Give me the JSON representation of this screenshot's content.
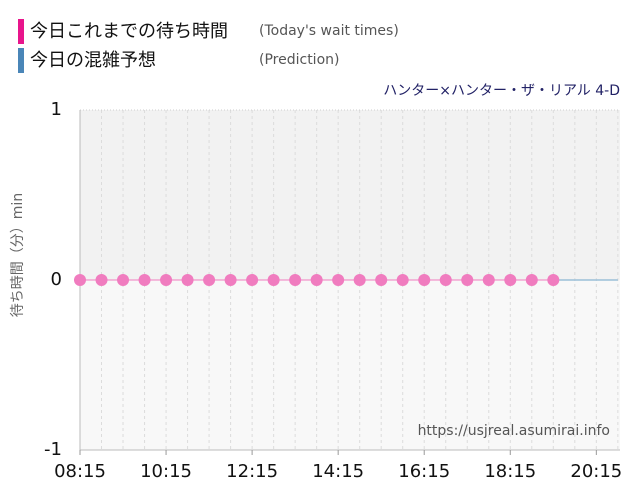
{
  "chart_data": {
    "type": "line",
    "legend": [
      {
        "label": "今日これまでの待ち時間",
        "note": "(Today's wait times)",
        "color": "#e8158c"
      },
      {
        "label": "今日の混雑予想",
        "note": "(Prediction)",
        "color": "#4a86b8"
      }
    ],
    "subtitle": "ハンター×ハンター・ザ・リアル 4-D",
    "y_label": "待ち時間（分）min",
    "watermark": "https://usjreal.asumirai.info",
    "x": [
      "08:15",
      "08:45",
      "09:15",
      "09:45",
      "10:15",
      "10:45",
      "11:15",
      "11:45",
      "12:15",
      "12:45",
      "13:15",
      "13:45",
      "14:15",
      "14:45",
      "15:15",
      "15:45",
      "16:15",
      "16:45",
      "17:15",
      "17:45",
      "18:15",
      "18:45",
      "19:15",
      "19:45",
      "20:15",
      "20:45"
    ],
    "series": [
      {
        "name": "今日これまでの待ち時間",
        "color": "#f07cbf",
        "values": [
          0,
          0,
          0,
          0,
          0,
          0,
          0,
          0,
          0,
          0,
          0,
          0,
          0,
          0,
          0,
          0,
          0,
          0,
          0,
          0,
          0,
          0,
          0,
          null,
          null,
          null
        ]
      },
      {
        "name": "今日の混雑予想",
        "color": "#9bbfd8",
        "values": [
          null,
          null,
          null,
          null,
          null,
          null,
          null,
          null,
          null,
          null,
          null,
          null,
          null,
          null,
          null,
          null,
          null,
          null,
          null,
          null,
          null,
          null,
          0,
          0,
          0,
          0
        ]
      }
    ],
    "xlim": [
      "08:15",
      "20:48"
    ],
    "xticks": [
      "08:15",
      "10:15",
      "12:15",
      "14:15",
      "16:15",
      "18:15",
      "20:15"
    ],
    "ylim": [
      -1,
      1
    ],
    "yticks": [
      1,
      0,
      -1
    ],
    "grid": true
  }
}
